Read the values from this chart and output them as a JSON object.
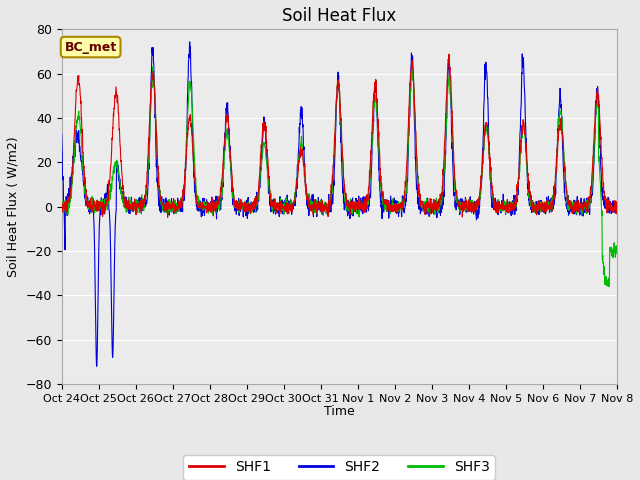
{
  "title": "Soil Heat Flux",
  "ylabel": "Soil Heat Flux ( W/m2)",
  "xlabel": "Time",
  "ylim": [
    -80,
    80
  ],
  "yticks": [
    -80,
    -60,
    -40,
    -20,
    0,
    20,
    40,
    60,
    80
  ],
  "fig_bg_color": "#e8e8e8",
  "plot_bg_color": "#ebebeb",
  "annotation_text": "BC_met",
  "annotation_bg": "#ffffaa",
  "annotation_border": "#aa8800",
  "line_colors": {
    "SHF1": "#dd0000",
    "SHF2": "#0000dd",
    "SHF3": "#00bb00"
  },
  "legend_labels": [
    "SHF1",
    "SHF2",
    "SHF3"
  ],
  "xtick_labels": [
    "Oct 24",
    "Oct 25",
    "Oct 26",
    "Oct 27",
    "Oct 28",
    "Oct 29",
    "Oct 30",
    "Oct 31",
    "Nov 1",
    "Nov 2",
    "Nov 3",
    "Nov 4",
    "Nov 5",
    "Nov 6",
    "Nov 7",
    "Nov 8"
  ],
  "n_days": 15,
  "pts_per_day": 144,
  "baseline": -22,
  "noise_day": 1.5,
  "noise_night": 1.0
}
